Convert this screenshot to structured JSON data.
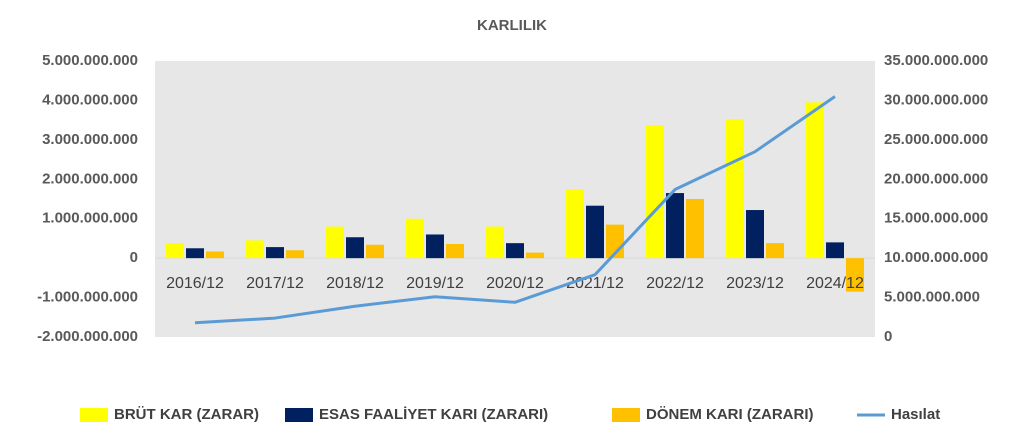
{
  "chart_data": {
    "type": "bar",
    "title": "KARLILIK",
    "categories": [
      "2016/12",
      "2017/12",
      "2018/12",
      "2019/12",
      "2020/12",
      "2021/12",
      "2022/12",
      "2023/12",
      "2024/12"
    ],
    "series": [
      {
        "name": "BRÜT KAR (ZARAR)",
        "color": "#ffff00",
        "values": [
          380000000,
          450000000,
          800000000,
          1000000000,
          800000000,
          1750000000,
          3370000000,
          3520000000,
          3950000000
        ]
      },
      {
        "name": "ESAS FAALİYET KARI (ZARARI)",
        "color": "#002060",
        "values": [
          250000000,
          280000000,
          530000000,
          600000000,
          380000000,
          1330000000,
          1650000000,
          1220000000,
          400000000
        ]
      },
      {
        "name": "DÖNEM KARI (ZARARI)",
        "color": "#ffc000",
        "values": [
          170000000,
          200000000,
          340000000,
          360000000,
          140000000,
          850000000,
          1500000000,
          380000000,
          -850000000
        ]
      },
      {
        "name": "Hasılat",
        "color": "#5b9bd5",
        "type": "line",
        "axis": "y2",
        "values": [
          1800000000,
          2400000000,
          3900000000,
          5100000000,
          4400000000,
          7900000000,
          18700000000,
          23500000000,
          30500000000
        ]
      }
    ],
    "ylim": [
      -2000000000,
      5000000000
    ],
    "yticks": [
      {
        "value": -2000000000,
        "label": "-2.000.000.000"
      },
      {
        "value": -1000000000,
        "label": "-1.000.000.000"
      },
      0,
      {
        "value": 1000000000,
        "label": "1.000.000.000"
      },
      {
        "value": 2000000000,
        "label": "2.000.000.000"
      },
      {
        "value": 3000000000,
        "label": "3.000.000.000"
      },
      {
        "value": 4000000000,
        "label": "4.000.000.000"
      },
      {
        "value": 5000000000,
        "label": "5.000.000.000"
      }
    ],
    "y2lim": [
      0,
      35000000000
    ],
    "y2ticks": [
      0,
      {
        "value": 5000000000,
        "label": "5.000.000.000"
      },
      {
        "value": 10000000000,
        "label": "10.000.000.000"
      },
      {
        "value": 15000000000,
        "label": "15.000.000.000"
      },
      {
        "value": 20000000000,
        "label": "20.000.000.000"
      },
      {
        "value": 25000000000,
        "label": "25.000.000.000"
      },
      {
        "value": 30000000000,
        "label": "30.000.000.000"
      },
      {
        "value": 35000000000,
        "label": "35.000.000.000"
      }
    ]
  }
}
